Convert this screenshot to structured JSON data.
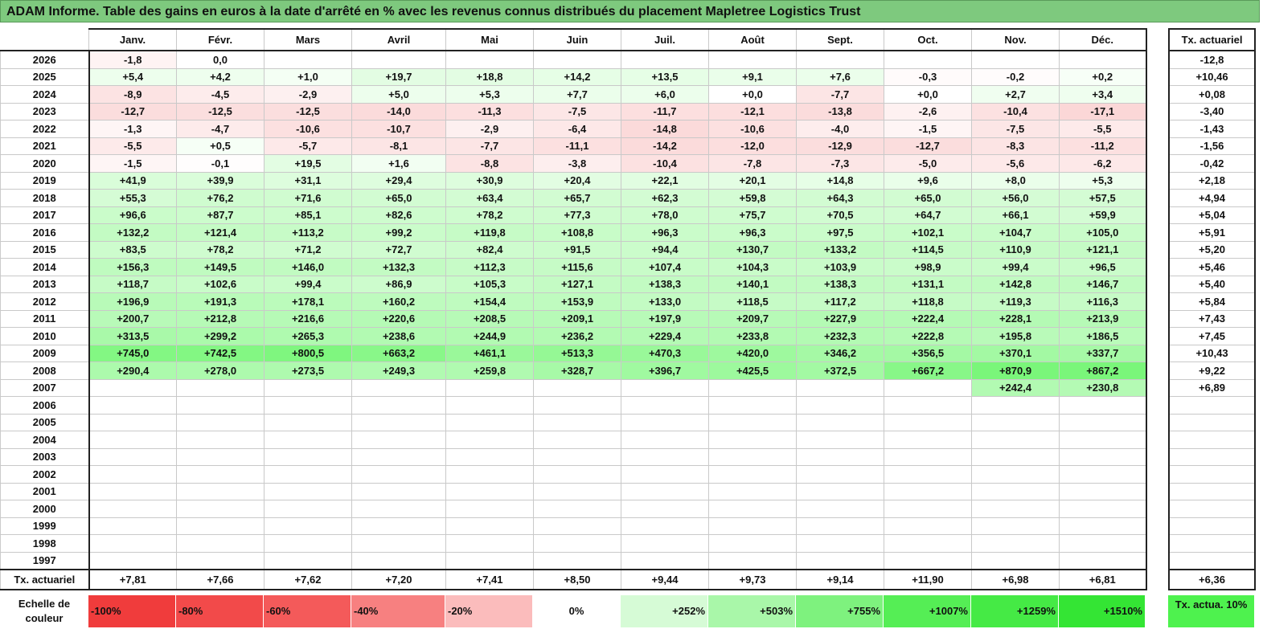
{
  "title": "ADAM Informe. Table des gains en euros à la date d'arrêté en % avec les revenus connus distribués du placement Mapletree Logistics Trust",
  "months": [
    "Janv.",
    "Févr.",
    "Mars",
    "Avril",
    "Mai",
    "Juin",
    "Juil.",
    "Août",
    "Sept.",
    "Oct.",
    "Nov.",
    "Déc."
  ],
  "side_header": "Tx. actuariel",
  "rows": [
    {
      "year": "2026",
      "values": [
        "-1,8",
        "0,0",
        "",
        "",
        "",
        "",
        "",
        "",
        "",
        "",
        "",
        ""
      ],
      "rate": "-12,8"
    },
    {
      "year": "2025",
      "values": [
        "+5,4",
        "+4,2",
        "+1,0",
        "+19,7",
        "+18,8",
        "+14,2",
        "+13,5",
        "+9,1",
        "+7,6",
        "-0,3",
        "-0,2",
        "+0,2"
      ],
      "rate": "+10,46"
    },
    {
      "year": "2024",
      "values": [
        "-8,9",
        "-4,5",
        "-2,9",
        "+5,0",
        "+5,3",
        "+7,7",
        "+6,0",
        "+0,0",
        "-7,7",
        "+0,0",
        "+2,7",
        "+3,4"
      ],
      "rate": "+0,08"
    },
    {
      "year": "2023",
      "values": [
        "-12,7",
        "-12,5",
        "-12,5",
        "-14,0",
        "-11,3",
        "-7,5",
        "-11,7",
        "-12,1",
        "-13,8",
        "-2,6",
        "-10,4",
        "-17,1"
      ],
      "rate": "-3,40"
    },
    {
      "year": "2022",
      "values": [
        "-1,3",
        "-4,7",
        "-10,6",
        "-10,7",
        "-2,9",
        "-6,4",
        "-14,8",
        "-10,6",
        "-4,0",
        "-1,5",
        "-7,5",
        "-5,5"
      ],
      "rate": "-1,43"
    },
    {
      "year": "2021",
      "values": [
        "-5,5",
        "+0,5",
        "-5,7",
        "-8,1",
        "-7,7",
        "-11,1",
        "-14,2",
        "-12,0",
        "-12,9",
        "-12,7",
        "-8,3",
        "-11,2"
      ],
      "rate": "-1,56"
    },
    {
      "year": "2020",
      "values": [
        "-1,5",
        "-0,1",
        "+19,5",
        "+1,6",
        "-8,8",
        "-3,8",
        "-10,4",
        "-7,8",
        "-7,3",
        "-5,0",
        "-5,6",
        "-6,2"
      ],
      "rate": "-0,42"
    },
    {
      "year": "2019",
      "values": [
        "+41,9",
        "+39,9",
        "+31,1",
        "+29,4",
        "+30,9",
        "+20,4",
        "+22,1",
        "+20,1",
        "+14,8",
        "+9,6",
        "+8,0",
        "+5,3"
      ],
      "rate": "+2,18"
    },
    {
      "year": "2018",
      "values": [
        "+55,3",
        "+76,2",
        "+71,6",
        "+65,0",
        "+63,4",
        "+65,7",
        "+62,3",
        "+59,8",
        "+64,3",
        "+65,0",
        "+56,0",
        "+57,5"
      ],
      "rate": "+4,94"
    },
    {
      "year": "2017",
      "values": [
        "+96,6",
        "+87,7",
        "+85,1",
        "+82,6",
        "+78,2",
        "+77,3",
        "+78,0",
        "+75,7",
        "+70,5",
        "+64,7",
        "+66,1",
        "+59,9"
      ],
      "rate": "+5,04"
    },
    {
      "year": "2016",
      "values": [
        "+132,2",
        "+121,4",
        "+113,2",
        "+99,2",
        "+119,8",
        "+108,8",
        "+96,3",
        "+96,3",
        "+97,5",
        "+102,1",
        "+104,7",
        "+105,0"
      ],
      "rate": "+5,91"
    },
    {
      "year": "2015",
      "values": [
        "+83,5",
        "+78,2",
        "+71,2",
        "+72,7",
        "+82,4",
        "+91,5",
        "+94,4",
        "+130,7",
        "+133,2",
        "+114,5",
        "+110,9",
        "+121,1"
      ],
      "rate": "+5,20"
    },
    {
      "year": "2014",
      "values": [
        "+156,3",
        "+149,5",
        "+146,0",
        "+132,3",
        "+112,3",
        "+115,6",
        "+107,4",
        "+104,3",
        "+103,9",
        "+98,9",
        "+99,4",
        "+96,5"
      ],
      "rate": "+5,46"
    },
    {
      "year": "2013",
      "values": [
        "+118,7",
        "+102,6",
        "+99,4",
        "+86,9",
        "+105,3",
        "+127,1",
        "+138,3",
        "+140,1",
        "+138,3",
        "+131,1",
        "+142,8",
        "+146,7"
      ],
      "rate": "+5,40"
    },
    {
      "year": "2012",
      "values": [
        "+196,9",
        "+191,3",
        "+178,1",
        "+160,2",
        "+154,4",
        "+153,9",
        "+133,0",
        "+118,5",
        "+117,2",
        "+118,8",
        "+119,3",
        "+116,3"
      ],
      "rate": "+5,84"
    },
    {
      "year": "2011",
      "values": [
        "+200,7",
        "+212,8",
        "+216,6",
        "+220,6",
        "+208,5",
        "+209,1",
        "+197,9",
        "+209,7",
        "+227,9",
        "+222,4",
        "+228,1",
        "+213,9"
      ],
      "rate": "+7,43"
    },
    {
      "year": "2010",
      "values": [
        "+313,5",
        "+299,2",
        "+265,3",
        "+238,6",
        "+244,9",
        "+236,2",
        "+229,4",
        "+233,8",
        "+232,3",
        "+222,8",
        "+195,8",
        "+186,5"
      ],
      "rate": "+7,45"
    },
    {
      "year": "2009",
      "values": [
        "+745,0",
        "+742,5",
        "+800,5",
        "+663,2",
        "+461,1",
        "+513,3",
        "+470,3",
        "+420,0",
        "+346,2",
        "+356,5",
        "+370,1",
        "+337,7"
      ],
      "rate": "+10,43"
    },
    {
      "year": "2008",
      "values": [
        "+290,4",
        "+278,0",
        "+273,5",
        "+249,3",
        "+259,8",
        "+328,7",
        "+396,7",
        "+425,5",
        "+372,5",
        "+667,2",
        "+870,9",
        "+867,2"
      ],
      "rate": "+9,22"
    },
    {
      "year": "2007",
      "values": [
        "",
        "",
        "",
        "",
        "",
        "",
        "",
        "",
        "",
        "",
        "+242,4",
        "+230,8"
      ],
      "rate": "+6,89"
    },
    {
      "year": "2006",
      "values": [
        "",
        "",
        "",
        "",
        "",
        "",
        "",
        "",
        "",
        "",
        "",
        ""
      ],
      "rate": ""
    },
    {
      "year": "2005",
      "values": [
        "",
        "",
        "",
        "",
        "",
        "",
        "",
        "",
        "",
        "",
        "",
        ""
      ],
      "rate": ""
    },
    {
      "year": "2004",
      "values": [
        "",
        "",
        "",
        "",
        "",
        "",
        "",
        "",
        "",
        "",
        "",
        ""
      ],
      "rate": ""
    },
    {
      "year": "2003",
      "values": [
        "",
        "",
        "",
        "",
        "",
        "",
        "",
        "",
        "",
        "",
        "",
        ""
      ],
      "rate": ""
    },
    {
      "year": "2002",
      "values": [
        "",
        "",
        "",
        "",
        "",
        "",
        "",
        "",
        "",
        "",
        "",
        ""
      ],
      "rate": ""
    },
    {
      "year": "2001",
      "values": [
        "",
        "",
        "",
        "",
        "",
        "",
        "",
        "",
        "",
        "",
        "",
        ""
      ],
      "rate": ""
    },
    {
      "year": "2000",
      "values": [
        "",
        "",
        "",
        "",
        "",
        "",
        "",
        "",
        "",
        "",
        "",
        ""
      ],
      "rate": ""
    },
    {
      "year": "1999",
      "values": [
        "",
        "",
        "",
        "",
        "",
        "",
        "",
        "",
        "",
        "",
        "",
        ""
      ],
      "rate": ""
    },
    {
      "year": "1998",
      "values": [
        "",
        "",
        "",
        "",
        "",
        "",
        "",
        "",
        "",
        "",
        "",
        ""
      ],
      "rate": ""
    },
    {
      "year": "1997",
      "values": [
        "",
        "",
        "",
        "",
        "",
        "",
        "",
        "",
        "",
        "",
        "",
        ""
      ],
      "rate": ""
    }
  ],
  "avg_row": {
    "label": "Tx. actuariel",
    "values": [
      "+7,81",
      "+7,66",
      "+7,62",
      "+7,20",
      "+7,41",
      "+8,50",
      "+9,44",
      "+9,73",
      "+9,14",
      "+11,90",
      "+6,98",
      "+6,81"
    ],
    "total": "+6,36"
  },
  "scale": {
    "label": "Echelle de couleur",
    "steps": [
      {
        "label": "-100%",
        "color": "#f03c3c"
      },
      {
        "label": "-80%",
        "color": "#f24a4a"
      },
      {
        "label": "-60%",
        "color": "#f45a5a"
      },
      {
        "label": "-40%",
        "color": "#f78080"
      },
      {
        "label": "-20%",
        "color": "#fbbcbc"
      },
      {
        "label": "0%",
        "color": "#ffffff"
      },
      {
        "label": "+252%",
        "color": "#d6fbd6"
      },
      {
        "label": "+503%",
        "color": "#a9f7a9"
      },
      {
        "label": "+755%",
        "color": "#7ef27e"
      },
      {
        "label": "+1007%",
        "color": "#55ee55"
      },
      {
        "label": "+1259%",
        "color": "#45ea45"
      },
      {
        "label": "+1510%",
        "color": "#34e534"
      }
    ],
    "reference_label": "Tx. actua. 10%",
    "reference_color": "#4ef24e"
  }
}
